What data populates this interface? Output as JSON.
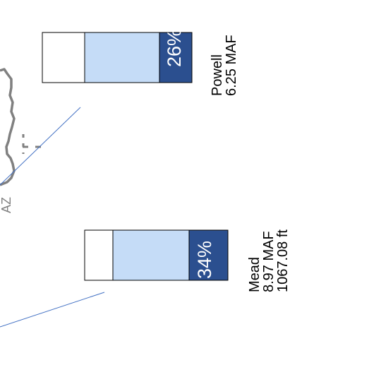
{
  "state_label": "AZ",
  "colors": {
    "full": "#2b4f8f",
    "capacity": "#c5dcf7",
    "empty": "#ffffff",
    "outline": "#000000",
    "river": "#4472c4",
    "border": "#808080"
  },
  "reservoirs": [
    {
      "id": "powell",
      "percent_text": "26%",
      "percent_full": 0.26,
      "name": "Powell",
      "volume": "6.25 MAF",
      "elevation": ""
    },
    {
      "id": "mead",
      "percent_text": "34%",
      "percent_full": 0.34,
      "name": "Mead",
      "volume": "8.97 MAF",
      "elevation": "1067.08 ft"
    }
  ]
}
